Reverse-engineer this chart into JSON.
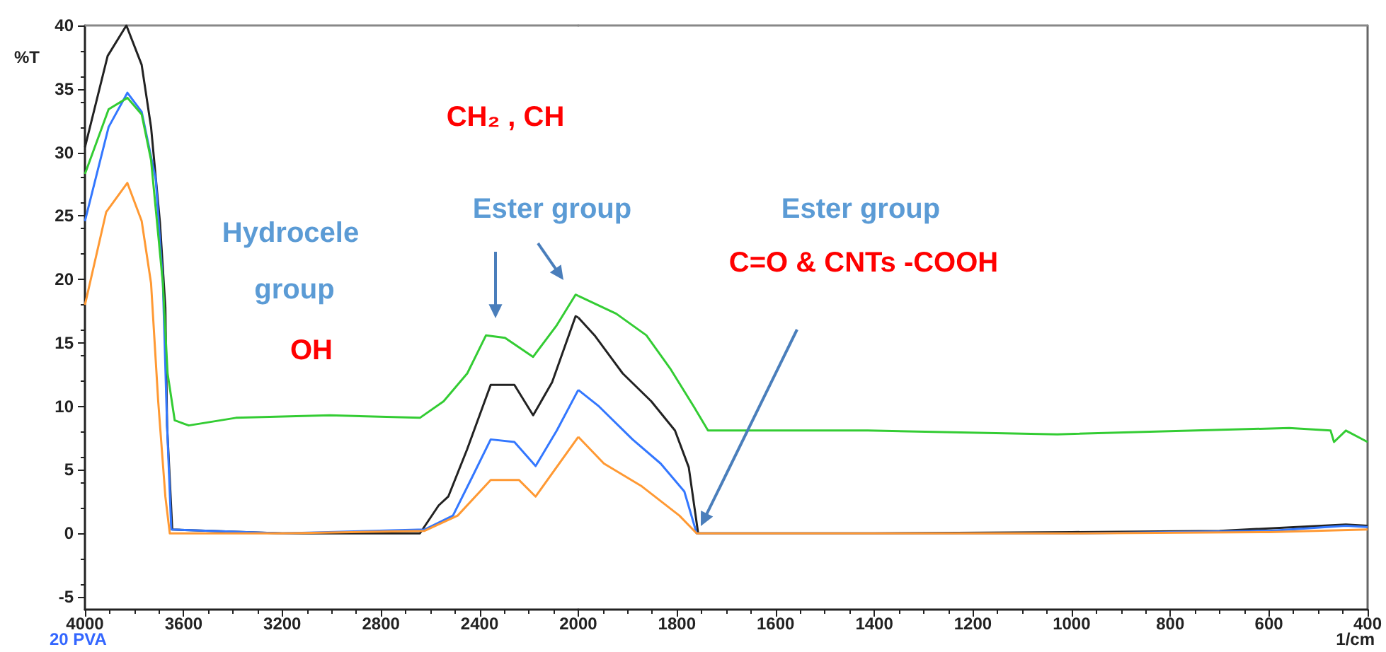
{
  "chart_data": [
    {
      "type": "line",
      "ylabel": "%T",
      "xlim": [
        4000,
        2000
      ],
      "xticks": [
        4000,
        3600,
        3200,
        2800,
        2400
      ],
      "ylim": [
        -6,
        40
      ],
      "yticks": [
        -5,
        0,
        5,
        10,
        15,
        20,
        25,
        30,
        35,
        40
      ],
      "grid": false,
      "marker": "none",
      "series": [
        {
          "color": "#222222",
          "x": [
            4000,
            3908,
            3832,
            3770,
            3732,
            3696,
            3674,
            3667,
            3646,
            3200,
            2642,
            2566,
            2527,
            2451,
            2355,
            2259,
            2183,
            2106,
            2011,
            2000
          ],
          "values": [
            30.4,
            37.6,
            40,
            36.9,
            32,
            24.5,
            17.8,
            8.5,
            0.3,
            0,
            0,
            2.2,
            2.9,
            6.6,
            11.7,
            11.7,
            9.3,
            11.9,
            17.1,
            17.0
          ]
        },
        {
          "color": "#3377ff",
          "x": [
            4000,
            3904,
            3828,
            3770,
            3713,
            3684,
            3667,
            3650,
            3200,
            2623,
            2508,
            2431,
            2355,
            2259,
            2173,
            2087,
            2000
          ],
          "values": [
            24.6,
            32,
            34.7,
            33.2,
            27.9,
            19.7,
            8.5,
            0.3,
            0,
            0.3,
            1.4,
            4.4,
            7.4,
            7.2,
            5.3,
            8.1,
            11.3
          ]
        },
        {
          "color": "#ff9933",
          "x": [
            4000,
            3914,
            3828,
            3770,
            3732,
            3703,
            3674,
            3656,
            3200,
            2623,
            2489,
            2355,
            2240,
            2173,
            2000
          ],
          "values": [
            18,
            25.3,
            27.6,
            24.6,
            19.7,
            10.4,
            2.9,
            0,
            0,
            0.2,
            1.4,
            4.2,
            4.2,
            2.9,
            7.6
          ]
        },
        {
          "color": "#33cc33",
          "x": [
            4000,
            3904,
            3828,
            3770,
            3732,
            3684,
            3665,
            3636,
            3579,
            3388,
            3007,
            2642,
            2546,
            2450,
            2374,
            2297,
            2183,
            2087,
            2011,
            2000
          ],
          "values": [
            28.3,
            33.4,
            34.3,
            33,
            29.4,
            19.7,
            12.6,
            8.9,
            8.5,
            9.1,
            9.3,
            9.1,
            10.4,
            12.6,
            15.6,
            15.4,
            13.9,
            16.4,
            18.8,
            18.7
          ]
        }
      ],
      "annotations": [
        "Hydrocele group",
        "OH",
        "CH₂ , CH",
        "Ester group",
        "20 PVA"
      ]
    },
    {
      "type": "line",
      "xlabel": "1/cm",
      "xlim": [
        2000,
        400
      ],
      "xticks": [
        2000,
        1800,
        1600,
        1400,
        1200,
        1000,
        800,
        600,
        400
      ],
      "ylim": [
        -6,
        40
      ],
      "tick_labels": "x",
      "grid": false,
      "marker": "none",
      "series": [
        {
          "color": "#222222",
          "x": [
            2000,
            1967,
            1910,
            1852,
            1804,
            1776,
            1757,
            1400,
            1000,
            700,
            444,
            400
          ],
          "values": [
            17.0,
            15.6,
            12.6,
            10.4,
            8.1,
            5.2,
            0,
            0,
            0.1,
            0.2,
            0.7,
            0.6
          ]
        },
        {
          "color": "#3377ff",
          "x": [
            2000,
            1958,
            1890,
            1833,
            1785,
            1760,
            1400,
            1000,
            600,
            444,
            400
          ],
          "values": [
            11.3,
            10,
            7.4,
            5.5,
            3.3,
            0,
            0,
            0,
            0.2,
            0.6,
            0.5
          ]
        },
        {
          "color": "#ff9933",
          "x": [
            2000,
            1948,
            1871,
            1795,
            1760,
            1400,
            1000,
            600,
            400
          ],
          "values": [
            7.6,
            5.5,
            3.7,
            1.4,
            0,
            0,
            0,
            0.1,
            0.3
          ]
        },
        {
          "color": "#33cc33",
          "x": [
            2000,
            1923,
            1862,
            1814,
            1766,
            1737,
            1413,
            1029,
            559,
            475,
            468,
            444,
            400
          ],
          "values": [
            18.7,
            17.3,
            15.6,
            13,
            10,
            8.1,
            8.1,
            7.8,
            8.3,
            8.1,
            7.2,
            8.1,
            7.2
          ]
        }
      ],
      "annotations": [
        "Ester group",
        "C=O & CNTs -COOH"
      ]
    }
  ]
}
